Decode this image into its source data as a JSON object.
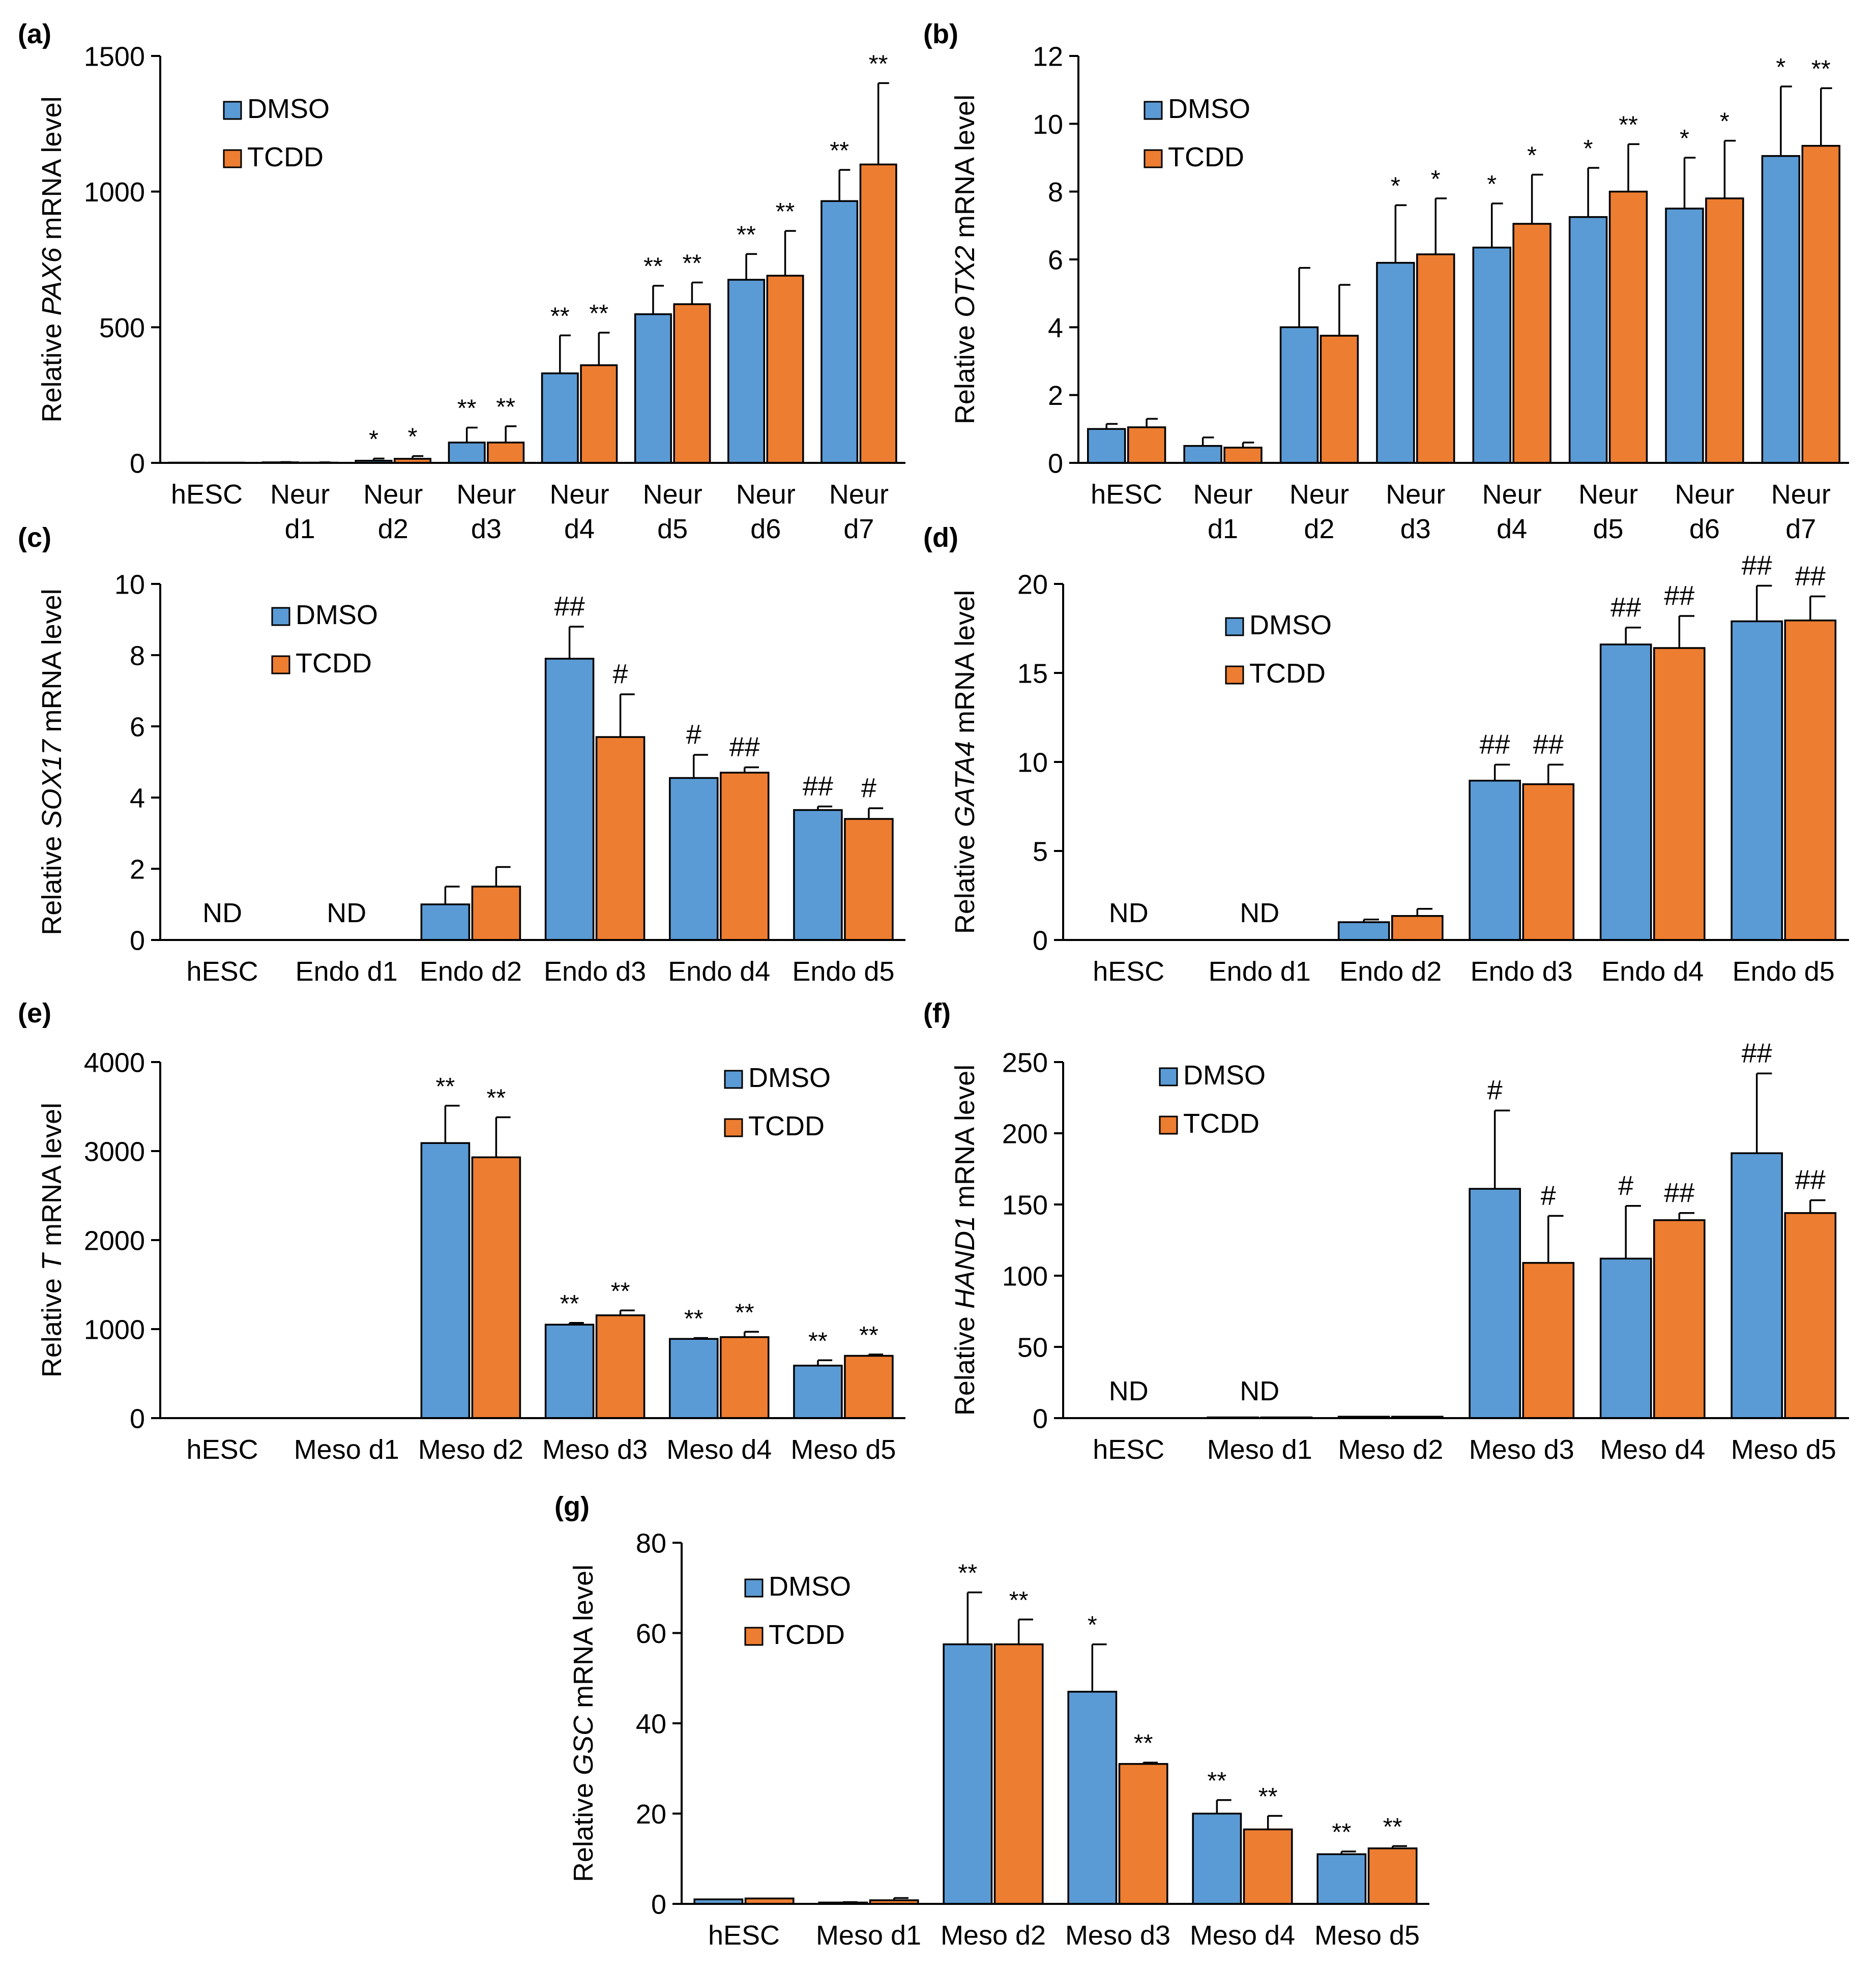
{
  "figure": {
    "legend_labels": [
      "DMSO",
      "TCDD"
    ],
    "colors": {
      "DMSO": "#5b9bd5",
      "TCDD": "#ed7d31"
    }
  },
  "chart_data": [
    {
      "panel_label": "(a)",
      "type": "bar",
      "ylabel": {
        "prefix": "Relative ",
        "gene": "PAX6",
        "suffix": " mRNA level"
      },
      "categories": [
        [
          "hESC"
        ],
        [
          "Neur",
          "d1"
        ],
        [
          "Neur",
          "d2"
        ],
        [
          "Neur",
          "d3"
        ],
        [
          "Neur",
          "d4"
        ],
        [
          "Neur",
          "d5"
        ],
        [
          "Neur",
          "d6"
        ],
        [
          "Neur",
          "d7"
        ]
      ],
      "ylim": [
        0,
        1500
      ],
      "yticks": [
        0,
        500,
        1000,
        1500
      ],
      "legend_position": "top-left",
      "series": [
        {
          "name": "DMSO",
          "values": [
            1,
            2,
            8,
            75,
            330,
            548,
            675,
            965
          ],
          "errors": [
            0,
            1,
            8,
            55,
            140,
            105,
            95,
            115
          ],
          "annotations": [
            "",
            "",
            "*",
            "**",
            "**",
            "**",
            "**",
            "**"
          ]
        },
        {
          "name": "TCDD",
          "values": [
            1,
            1,
            15,
            75,
            360,
            585,
            690,
            1100
          ],
          "errors": [
            0,
            1,
            10,
            60,
            120,
            80,
            165,
            300
          ],
          "annotations": [
            "",
            "",
            "*",
            "**",
            "**",
            "**",
            "**",
            "**"
          ]
        }
      ]
    },
    {
      "panel_label": "(b)",
      "type": "bar",
      "ylabel": {
        "prefix": "Relative ",
        "gene": "OTX2",
        "suffix": " mRNA level"
      },
      "categories": [
        [
          "hESC"
        ],
        [
          "Neur",
          "d1"
        ],
        [
          "Neur",
          "d2"
        ],
        [
          "Neur",
          "d3"
        ],
        [
          "Neur",
          "d4"
        ],
        [
          "Neur",
          "d5"
        ],
        [
          "Neur",
          "d6"
        ],
        [
          "Neur",
          "d7"
        ]
      ],
      "ylim": [
        0,
        12
      ],
      "yticks": [
        0,
        2,
        4,
        6,
        8,
        10,
        12
      ],
      "legend_position": "top-left",
      "series": [
        {
          "name": "DMSO",
          "values": [
            1.0,
            0.5,
            4.0,
            5.9,
            6.35,
            7.25,
            7.5,
            9.05
          ],
          "errors": [
            0.15,
            0.25,
            1.75,
            1.7,
            1.3,
            1.45,
            1.5,
            2.05
          ],
          "annotations": [
            "",
            "",
            "",
            "*",
            "*",
            "*",
            "*",
            "*"
          ]
        },
        {
          "name": "TCDD",
          "values": [
            1.05,
            0.45,
            3.75,
            6.15,
            7.05,
            8.0,
            7.8,
            9.35
          ],
          "errors": [
            0.25,
            0.15,
            1.5,
            1.65,
            1.45,
            1.4,
            1.7,
            1.7
          ],
          "annotations": [
            "",
            "",
            "",
            "*",
            "*",
            "**",
            "*",
            "**"
          ]
        }
      ]
    },
    {
      "panel_label": "(c)",
      "type": "bar",
      "ylabel": {
        "prefix": "Relative ",
        "gene": "SOX17",
        "suffix": " mRNA level"
      },
      "categories": [
        [
          "hESC"
        ],
        [
          "Endo d1"
        ],
        [
          "Endo d2"
        ],
        [
          "Endo d3"
        ],
        [
          "Endo d4"
        ],
        [
          "Endo d5"
        ]
      ],
      "ylim": [
        0,
        10
      ],
      "yticks": [
        0,
        2,
        4,
        6,
        8,
        10
      ],
      "legend_position": "top-left",
      "category_notes": [
        "ND",
        "ND",
        "",
        "",
        "",
        ""
      ],
      "series": [
        {
          "name": "DMSO",
          "values": [
            0,
            0,
            1.0,
            7.9,
            4.55,
            3.65
          ],
          "errors": [
            0,
            0,
            0.5,
            0.9,
            0.65,
            0.1
          ],
          "annotations": [
            "",
            "",
            "",
            "##",
            "#",
            "##"
          ]
        },
        {
          "name": "TCDD",
          "values": [
            0,
            0,
            1.5,
            5.7,
            4.7,
            3.4
          ],
          "errors": [
            0,
            0,
            0.55,
            1.2,
            0.15,
            0.3
          ],
          "annotations": [
            "",
            "",
            "",
            "#",
            "##",
            "#"
          ]
        }
      ]
    },
    {
      "panel_label": "(d)",
      "type": "bar",
      "ylabel": {
        "prefix": "Relative ",
        "gene": "GATA4",
        "suffix": " mRNA level"
      },
      "categories": [
        [
          "hESC"
        ],
        [
          "Endo d1"
        ],
        [
          "Endo d2"
        ],
        [
          "Endo d3"
        ],
        [
          "Endo d4"
        ],
        [
          "Endo d5"
        ]
      ],
      "ylim": [
        0,
        20
      ],
      "yticks": [
        0,
        5,
        10,
        15,
        20
      ],
      "legend_position": "top-center",
      "category_notes": [
        "ND",
        "ND",
        "",
        "",
        "",
        ""
      ],
      "series": [
        {
          "name": "DMSO",
          "values": [
            0,
            0,
            1.0,
            8.95,
            16.6,
            17.9
          ],
          "errors": [
            0,
            0,
            0.15,
            0.9,
            0.95,
            2.0
          ],
          "annotations": [
            "",
            "",
            "",
            "##",
            "##",
            "##"
          ]
        },
        {
          "name": "TCDD",
          "values": [
            0,
            0,
            1.35,
            8.75,
            16.4,
            17.95
          ],
          "errors": [
            0,
            0,
            0.4,
            1.1,
            1.8,
            1.35
          ],
          "annotations": [
            "",
            "",
            "",
            "##",
            "##",
            "##"
          ]
        }
      ]
    },
    {
      "panel_label": "(e)",
      "type": "bar",
      "ylabel": {
        "prefix": "Relative ",
        "gene": "T",
        "suffix": " mRNA level"
      },
      "categories": [
        [
          "hESC"
        ],
        [
          "Meso d1"
        ],
        [
          "Meso d2"
        ],
        [
          "Meso d3"
        ],
        [
          "Meso d4"
        ],
        [
          "Meso d5"
        ]
      ],
      "ylim": [
        0,
        4000
      ],
      "yticks": [
        0,
        1000,
        2000,
        3000,
        4000
      ],
      "legend_position": "top-right",
      "series": [
        {
          "name": "DMSO",
          "values": [
            0,
            0,
            3090,
            1050,
            890,
            590
          ],
          "errors": [
            0,
            0,
            420,
            20,
            10,
            60
          ],
          "annotations": [
            "",
            "",
            "**",
            "**",
            "**",
            "**"
          ]
        },
        {
          "name": "TCDD",
          "values": [
            0,
            0,
            2930,
            1155,
            910,
            700
          ],
          "errors": [
            0,
            0,
            450,
            55,
            60,
            15
          ],
          "annotations": [
            "",
            "",
            "**",
            "**",
            "**",
            "**"
          ]
        }
      ]
    },
    {
      "panel_label": "(f)",
      "type": "bar",
      "ylabel": {
        "prefix": "Relative ",
        "gene": "HAND1",
        "suffix": " mRNA level"
      },
      "categories": [
        [
          "hESC"
        ],
        [
          "Meso d1"
        ],
        [
          "Meso d2"
        ],
        [
          "Meso d3"
        ],
        [
          "Meso d4"
        ],
        [
          "Meso d5"
        ]
      ],
      "ylim": [
        0,
        250
      ],
      "yticks": [
        0,
        50,
        100,
        150,
        200,
        250
      ],
      "legend_position": "top-left",
      "category_notes": [
        "ND",
        "ND",
        "",
        "",
        "",
        ""
      ],
      "series": [
        {
          "name": "DMSO",
          "values": [
            0,
            0.5,
            1,
            161,
            112,
            186
          ],
          "errors": [
            0,
            0,
            0,
            55,
            37,
            56
          ],
          "annotations": [
            "",
            "",
            "",
            "#",
            "#",
            "##"
          ]
        },
        {
          "name": "TCDD",
          "values": [
            0,
            0.5,
            1,
            109,
            139,
            144
          ],
          "errors": [
            0,
            0,
            0,
            33,
            5,
            9
          ],
          "annotations": [
            "",
            "",
            "",
            "#",
            "##",
            "##"
          ]
        }
      ]
    },
    {
      "panel_label": "(g)",
      "type": "bar",
      "ylabel": {
        "prefix": "Relative ",
        "gene": "GSC",
        "suffix": " mRNA level"
      },
      "categories": [
        [
          "hESC"
        ],
        [
          "Meso d1"
        ],
        [
          "Meso d2"
        ],
        [
          "Meso d3"
        ],
        [
          "Meso d4"
        ],
        [
          "Meso d5"
        ]
      ],
      "ylim": [
        0,
        80
      ],
      "yticks": [
        0,
        20,
        40,
        60,
        80
      ],
      "legend_position": "top-left",
      "series": [
        {
          "name": "DMSO",
          "values": [
            1.0,
            0.3,
            57.5,
            47,
            20,
            11
          ],
          "errors": [
            0,
            0.1,
            11.5,
            10.5,
            3,
            0.6
          ],
          "annotations": [
            "",
            "",
            "**",
            "*",
            "**",
            "**"
          ]
        },
        {
          "name": "TCDD",
          "values": [
            1.2,
            0.8,
            57.5,
            31,
            16.5,
            12.3
          ],
          "errors": [
            0,
            0.5,
            5.5,
            0.3,
            3,
            0.5
          ],
          "annotations": [
            "",
            "",
            "**",
            "**",
            "**",
            "**"
          ]
        }
      ]
    }
  ]
}
